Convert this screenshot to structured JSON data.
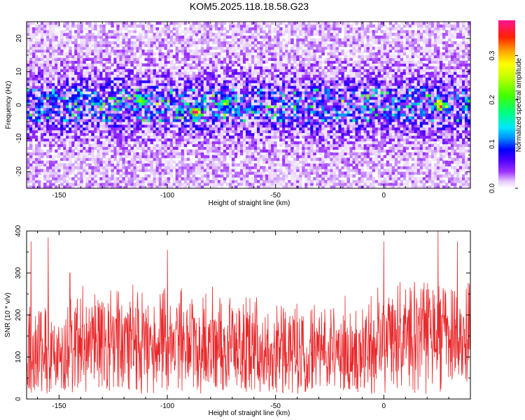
{
  "figure": {
    "title": "KOM5.2025.118.18.58.G23"
  },
  "chart_data": [
    {
      "type": "heatmap",
      "xlabel": "Height of straight line (km)",
      "ylabel": "Frequency (Hz)",
      "xlim": [
        -165,
        40
      ],
      "ylim": [
        -25,
        25
      ],
      "x_ticks": [
        -150,
        -100,
        -50,
        0
      ],
      "x_tick_labels": [
        "-150",
        "-100",
        "-50",
        "0"
      ],
      "y_ticks": [
        -20,
        -10,
        0,
        10,
        20
      ],
      "y_tick_labels": [
        "-20",
        "-10",
        "0",
        "10",
        "20"
      ],
      "colorbar": {
        "label": "Normalized spectral amplitude",
        "range": [
          0.0,
          0.38
        ],
        "ticks": [
          0.0,
          0.1,
          0.2,
          0.3
        ],
        "tick_labels": [
          "0.0",
          "0.1",
          "0.2",
          "0.3"
        ],
        "colors": [
          "#ffffff",
          "#d9b3ff",
          "#8a2be2",
          "#5a00ff",
          "#0000ff",
          "#00bfff",
          "#00ffff",
          "#00ff7f",
          "#7fff00",
          "#ffff00",
          "#ff7f00",
          "#ff0000",
          "#ff00aa"
        ]
      },
      "description_of_distribution": {
        "band_center_hz": 0,
        "band_halfwidth_hz": 6,
        "peak_locations": [
          {
            "x": -87,
            "y": -2,
            "value": 0.33
          },
          {
            "x": 26,
            "y": 0,
            "value": 0.3
          },
          {
            "x": -112,
            "y": 1.5,
            "value": 0.22
          },
          {
            "x": -73,
            "y": 1,
            "value": 0.2
          }
        ]
      }
    },
    {
      "type": "line",
      "xlabel": "Height of straight line (km)",
      "ylabel": "SNR (10 * v/v)",
      "xlim": [
        -165,
        40
      ],
      "ylim": [
        0,
        400
      ],
      "x_ticks": [
        -150,
        -100,
        -50,
        0
      ],
      "x_tick_labels": [
        "-150",
        "-100",
        "-50",
        "0"
      ],
      "y_ticks": [
        0,
        100,
        200,
        300,
        400
      ],
      "y_tick_labels": [
        "0",
        "100",
        "200",
        "300",
        "400"
      ],
      "series": [
        {
          "color": "#e8282b",
          "mean": 120,
          "typical_max": 260,
          "notable_peaks": [
            {
              "x": -163,
              "y": 375
            },
            {
              "x": -155,
              "y": 385
            },
            {
              "x": -145,
              "y": 300
            },
            {
              "x": -100,
              "y": 355
            },
            {
              "x": 0,
              "y": 375
            },
            {
              "x": 25,
              "y": 400
            },
            {
              "x": 34,
              "y": 375
            }
          ]
        }
      ]
    }
  ]
}
